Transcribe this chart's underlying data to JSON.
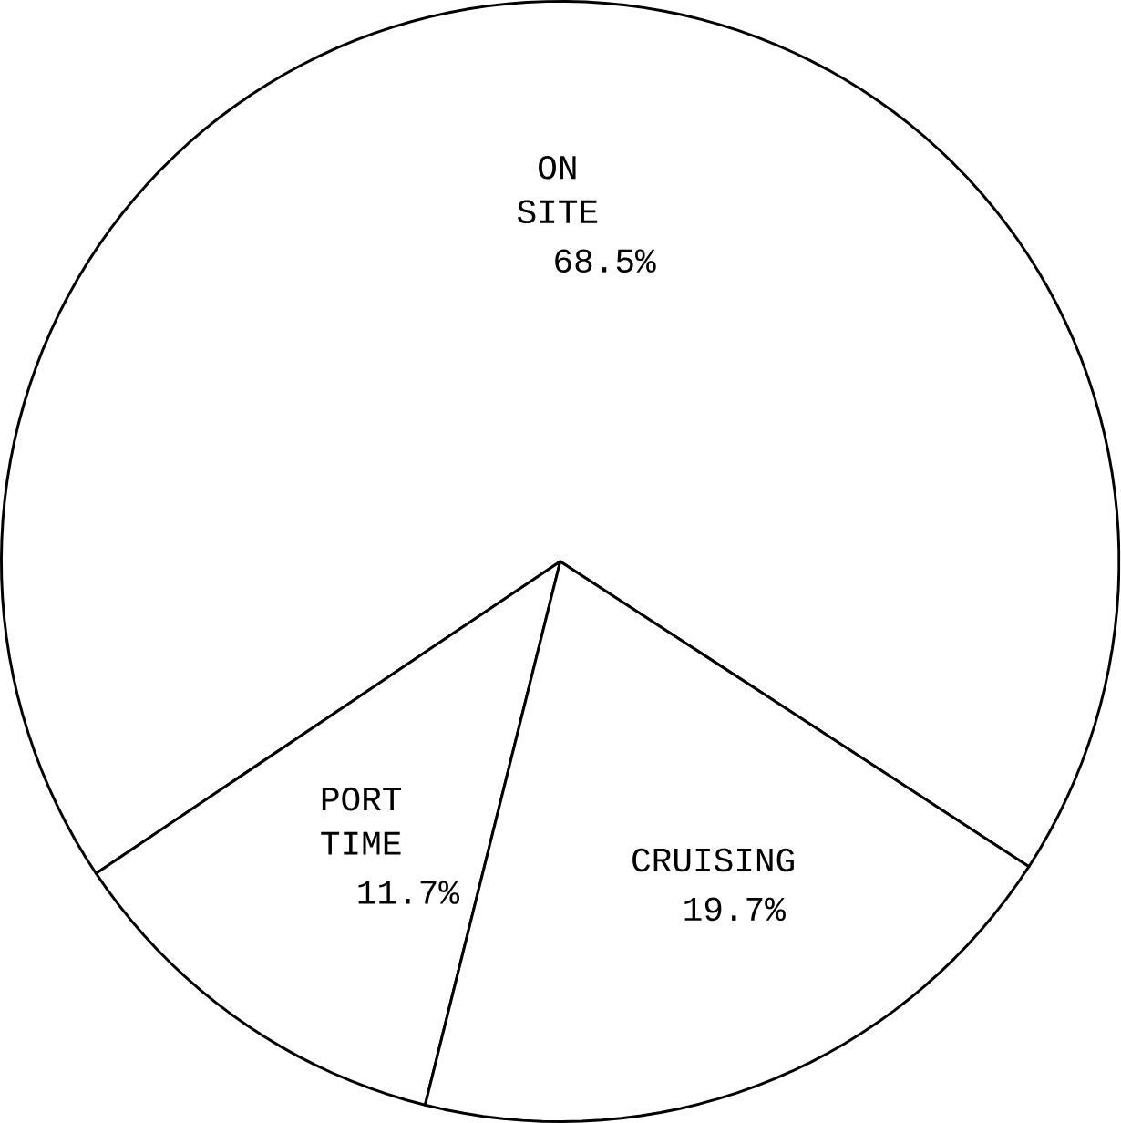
{
  "chart_data": {
    "type": "pie",
    "categories": [
      "ON SITE",
      "PORT TIME",
      "CRUISING"
    ],
    "values": [
      68.5,
      11.7,
      19.7
    ],
    "colors": [
      "#ffffff",
      "#ffffff",
      "#ffffff"
    ],
    "value_labels": [
      "68.5%",
      "11.7%",
      "19.7%"
    ]
  }
}
